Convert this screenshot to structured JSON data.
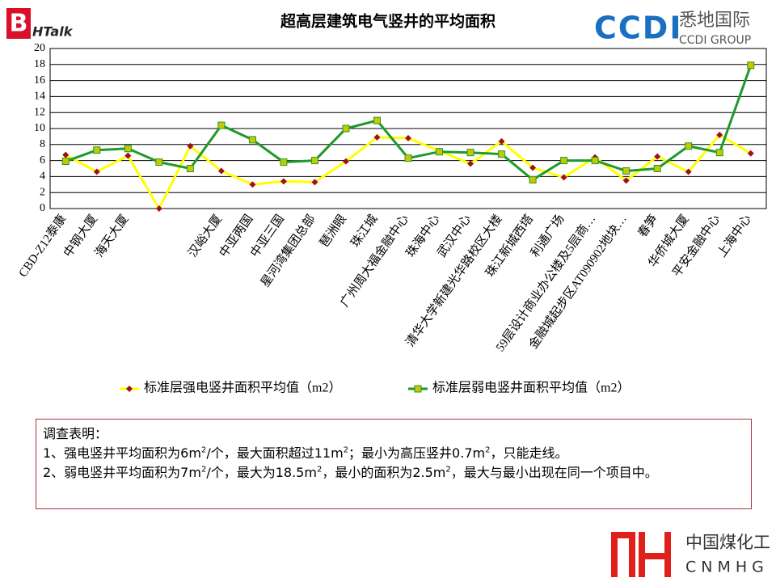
{
  "chart_data": {
    "type": "line",
    "title": "超高层建筑电气竖井的平均面积",
    "categories": [
      "CBD-Z12泰康",
      "中钢大厦",
      "海天大厦",
      null,
      null,
      "汉峪大厦",
      "中亚两国",
      "中亚三国",
      "星河湾集团总部",
      "琶洲眼",
      "珠江城",
      "广州周大福金融中心",
      "珠海中心",
      "武汉中心",
      "清华大学新建光华路校区大楼",
      "珠江新城西塔",
      "利通广场",
      "59层设计商业办公楼及5层商…",
      "金融城起步区AT090902地块…",
      "春笋",
      "华侨城大厦",
      "平安金融中心",
      "上海中心"
    ],
    "series": [
      {
        "name": "标准层强电竖井面积平均值（m2）",
        "color": "#ffff00",
        "marker_color": "#a0101a",
        "marker": "diamond",
        "values": [
          6.7,
          4.6,
          6.6,
          0,
          7.8,
          4.7,
          3.0,
          3.4,
          3.3,
          5.9,
          8.9,
          8.8,
          7.2,
          5.6,
          8.4,
          5.1,
          3.9,
          6.4,
          3.5,
          6.5,
          4.6,
          9.2,
          6.9
        ]
      },
      {
        "name": "标准层弱电竖井面积平均值（m2）",
        "color": "#1f9a2a",
        "marker_color": "#c8c800",
        "marker": "square",
        "values": [
          5.9,
          7.3,
          7.5,
          5.8,
          5.0,
          10.4,
          8.6,
          5.8,
          6.0,
          10.0,
          11.0,
          6.3,
          7.1,
          7.0,
          6.8,
          3.6,
          6.0,
          6.0,
          4.7,
          5.0,
          7.8,
          7.0,
          17.9
        ]
      }
    ],
    "ylim": [
      0,
      20
    ],
    "yticks": [
      0,
      2,
      4,
      6,
      8,
      10,
      12,
      14,
      16,
      18,
      20
    ],
    "grid": true,
    "legend": "bottom"
  },
  "notes": {
    "heading": "调查表明：",
    "lines": [
      [
        {
          "text": "1、强电竖井平均面积为6m"
        },
        {
          "text": "2",
          "sup": true
        },
        {
          "text": "/个，最大面积超过11m"
        },
        {
          "text": "2",
          "sup": true
        },
        {
          "text": "；最小为高压竖井0.7m"
        },
        {
          "text": "2",
          "sup": true
        },
        {
          "text": "，只能走线。"
        }
      ],
      [
        {
          "text": "2、弱电竖井平均面积为7m"
        },
        {
          "text": "2",
          "sup": true
        },
        {
          "text": "/个，最大为18.5m"
        },
        {
          "text": "2",
          "sup": true
        },
        {
          "text": "，最小的面积为2.5m"
        },
        {
          "text": "2",
          "sup": true
        },
        {
          "text": "，最大与最小出现在同一个项目中。"
        }
      ]
    ]
  },
  "logos": {
    "bhtalk": "HTalk",
    "bhtalk_initial": "B",
    "ccdi": "CCDI",
    "ccdi_cn": "悉地国际",
    "ccdi_en": "CCDI GROUP",
    "cnmhg_cn": "中国煤化工",
    "cnmhg_en": "CNMHG"
  }
}
